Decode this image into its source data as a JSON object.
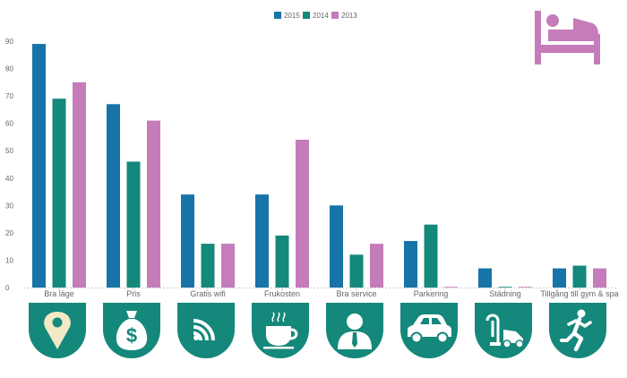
{
  "chart_data": {
    "type": "bar",
    "title": "",
    "xlabel": "",
    "ylabel": "",
    "ylim": [
      0,
      90
    ],
    "yticks": [
      0,
      10,
      20,
      30,
      40,
      50,
      60,
      70,
      80,
      90
    ],
    "grid": false,
    "legend_position": "top-center",
    "categories": [
      "Bra läge",
      "Pris",
      "Gratis wifi",
      "Frukosten",
      "Bra service",
      "Parkering",
      "Städning",
      "Tillgång till gym & spa"
    ],
    "series": [
      {
        "name": "2015",
        "color": "#1874a8",
        "values": [
          89,
          67,
          34,
          34,
          30,
          17,
          7,
          7
        ]
      },
      {
        "name": "2014",
        "color": "#14887a",
        "values": [
          69,
          46,
          16,
          19,
          12,
          23,
          0.2,
          8
        ]
      },
      {
        "name": "2013",
        "color": "#c57cba",
        "values": [
          75,
          61,
          16,
          54,
          16,
          0.2,
          0.2,
          7
        ]
      }
    ],
    "category_icons": [
      "location-pin-icon",
      "money-bag-icon",
      "wifi-icon",
      "coffee-cup-icon",
      "staff-person-icon",
      "car-icon",
      "vacuum-cleaner-icon",
      "runner-icon"
    ],
    "corner_icon": "hotel-bed-icon"
  },
  "colors": {
    "icon_circle": "#14887a",
    "icon_fill": "#ffffff",
    "bed_icon": "#c57cba",
    "axis": "#cccccc"
  }
}
